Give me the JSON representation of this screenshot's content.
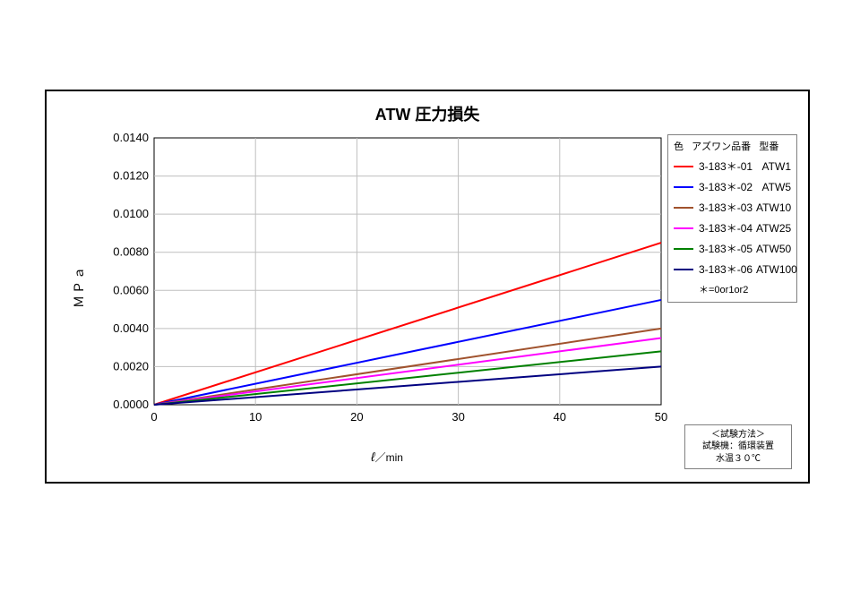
{
  "chart": {
    "type": "line",
    "title": "ATW  圧力損失",
    "title_fontsize": 18,
    "xlabel_html": "<span style='font-style:italic'>ℓ</span><span class='unit'>／min</span>",
    "ylabel": "ＭＰａ",
    "background_color": "#ffffff",
    "plot_bg": "#ffffff",
    "axis_color": "#000000",
    "grid_color": "#bfbfbf",
    "grid_width": 1,
    "line_width": 2,
    "label_fontsize": 13,
    "x": {
      "min": 0,
      "max": 50,
      "ticks": [
        0,
        10,
        20,
        30,
        40,
        50
      ]
    },
    "y": {
      "min": 0,
      "max": 0.014,
      "ticks": [
        0,
        0.002,
        0.004,
        0.006,
        0.008,
        0.01,
        0.012,
        0.014
      ],
      "tick_labels": [
        "0.0000",
        "0.0020",
        "0.0040",
        "0.0060",
        "0.0080",
        "0.0100",
        "0.0120",
        "0.0140"
      ]
    },
    "series": [
      {
        "code": "3-183＊-01",
        "model": "ATW1",
        "color": "#ff0000",
        "y_at_xmax": 0.0085
      },
      {
        "code": "3-183＊-02",
        "model": "ATW5",
        "color": "#0000ff",
        "y_at_xmax": 0.0055
      },
      {
        "code": "3-183＊-03",
        "model": "ATW10",
        "color": "#a0522d",
        "y_at_xmax": 0.004
      },
      {
        "code": "3-183＊-04",
        "model": "ATW25",
        "color": "#ff00ff",
        "y_at_xmax": 0.0035
      },
      {
        "code": "3-183＊-05",
        "model": "ATW50",
        "color": "#008000",
        "y_at_xmax": 0.0028
      },
      {
        "code": "3-183＊-06",
        "model": "ATW100",
        "color": "#000080",
        "y_at_xmax": 0.002
      }
    ],
    "legend": {
      "header_color": "色",
      "header_code": "アズワン品番",
      "header_model": "型番",
      "note": "＊=0or1or2",
      "border_color": "#808080"
    },
    "method_box": {
      "line1": "＜試験方法＞",
      "line2": "試験機：循環装置",
      "line3": "水温３０℃",
      "border_color": "#808080"
    }
  }
}
